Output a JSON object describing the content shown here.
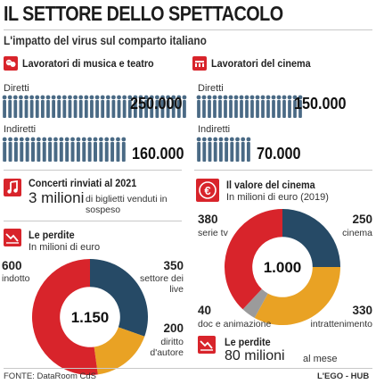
{
  "header": {
    "title": "IL SETTORE DELLO SPETTACOLO",
    "subtitle": "L'impatto del virus sul comparto italiano"
  },
  "music_theatre": {
    "heading": "Lavoratori di musica e teatro",
    "direct_label": "Diretti",
    "direct_value": "250.000",
    "indirect_label": "Indiretti",
    "indirect_value": "160.000",
    "icon": "theatre-masks-icon"
  },
  "cinema_workers": {
    "heading": "Lavoratori del cinema",
    "direct_label": "Diretti",
    "direct_value": "150.000",
    "indirect_label": "Indiretti",
    "indirect_value": "70.000",
    "icon": "cinema-seats-icon"
  },
  "concerts": {
    "heading": "Concerti rinviati al 2021",
    "value": "3 milioni",
    "text": "di biglietti venduti in sospeso",
    "icon": "music-note-icon"
  },
  "losses": {
    "heading": "Le perdite",
    "unit": "In milioni di euro",
    "total": "1.150",
    "icon": "losses-chart-icon"
  },
  "cinema_value": {
    "heading": "Il valore del cinema",
    "unit": "In milioni di euro (2019)",
    "total": "1.000",
    "icon": "euro-icon"
  },
  "cinema_losses": {
    "heading": "Le perdite",
    "value": "80 milioni",
    "suffix": "al mese",
    "icon": "losses-chart-icon"
  },
  "footer": {
    "source": "FONTE: DataRoom CdS",
    "credit": "L'EGO - HUB"
  },
  "colors": {
    "red": "#d8242b",
    "navy": "#264a66",
    "orange": "#e9a224",
    "gray": "#9b9b9b",
    "people": "#4a6a85"
  },
  "chart_data": [
    {
      "type": "pie",
      "title": "Le perdite",
      "subtitle": "In milioni di euro",
      "center_label": "1.150",
      "categories": [
        "indotto",
        "settore dei live",
        "diritto d'autore"
      ],
      "values": [
        600,
        350,
        200
      ],
      "value_labels": [
        "600",
        "350",
        "200"
      ],
      "colors": [
        "#d8242b",
        "#264a66",
        "#e9a224"
      ]
    },
    {
      "type": "pie",
      "title": "Il valore del cinema",
      "subtitle": "In milioni di euro (2019)",
      "center_label": "1.000",
      "categories": [
        "serie tv",
        "cinema",
        "intrattenimento",
        "doc e animazione"
      ],
      "values": [
        380,
        250,
        330,
        40
      ],
      "value_labels": [
        "380",
        "250",
        "330",
        "40"
      ],
      "colors": [
        "#d8242b",
        "#264a66",
        "#e9a224",
        "#9b9b9b"
      ]
    }
  ]
}
